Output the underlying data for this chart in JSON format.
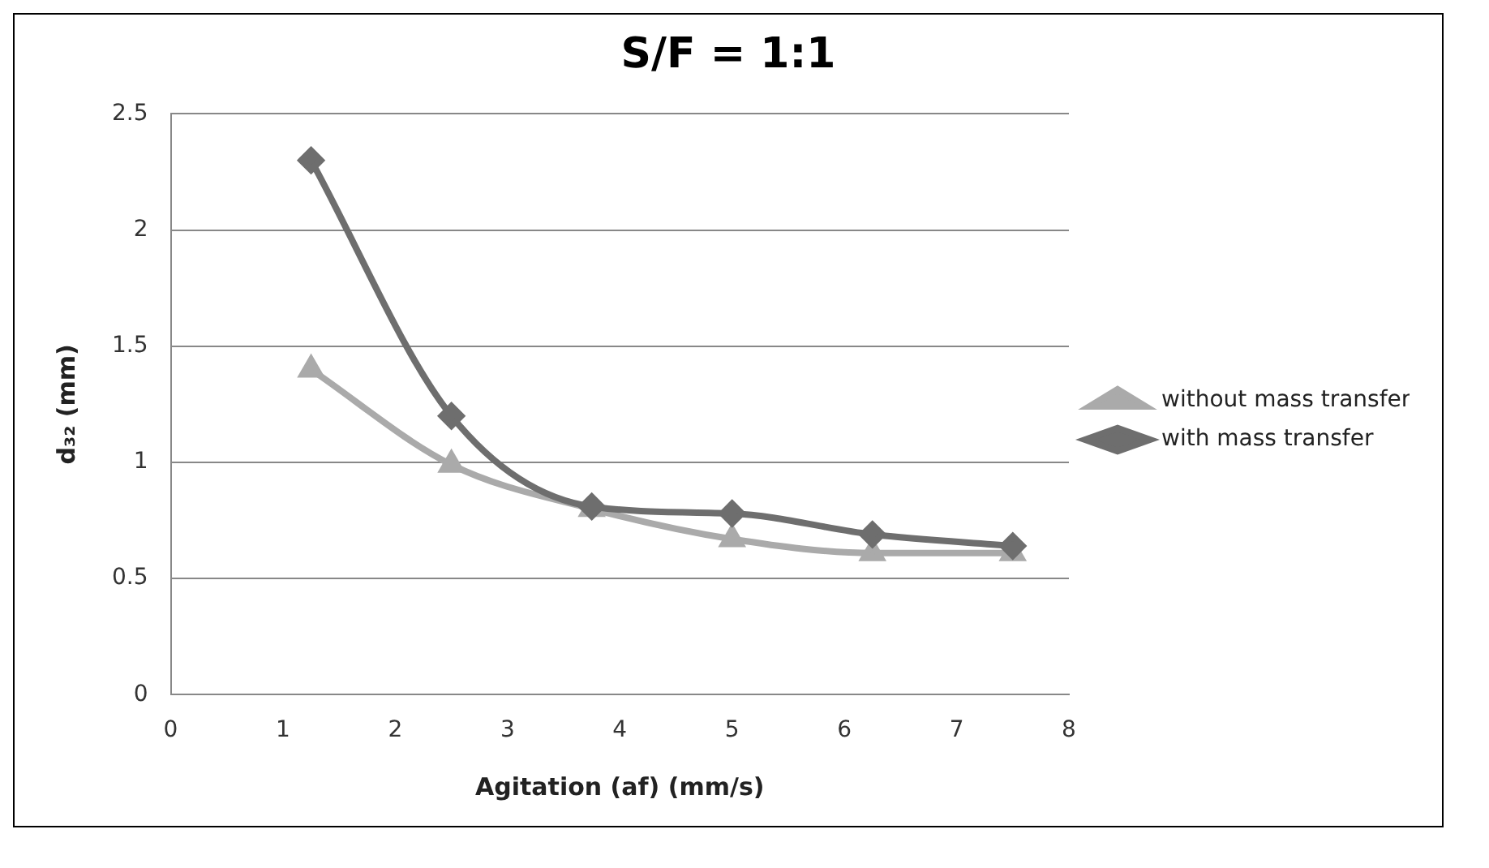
{
  "chart_data": {
    "type": "line",
    "title": "S/F = 1:1",
    "xlabel": "Agitation (af) (mm/s)",
    "ylabel": "d₃₂ (mm)",
    "x": [
      1.25,
      2.5,
      3.75,
      5,
      6.25,
      7.5
    ],
    "series": [
      {
        "name": "without mass transfer",
        "color": "#aaaaaa",
        "marker": "triangle",
        "values": [
          1.4,
          0.99,
          0.8,
          0.67,
          0.61,
          0.61
        ]
      },
      {
        "name": "with mass transfer",
        "color": "#6e6e6e",
        "marker": "diamond",
        "values": [
          2.3,
          1.2,
          0.81,
          0.78,
          0.69,
          0.64
        ]
      }
    ],
    "xlim": [
      0,
      8
    ],
    "xticks": [
      0,
      1,
      2,
      3,
      4,
      5,
      6,
      7,
      8
    ],
    "ylim": [
      0,
      2.5
    ],
    "yticks": [
      0,
      0.5,
      1,
      1.5,
      2,
      2.5
    ],
    "grid": "y",
    "legend": "right"
  }
}
